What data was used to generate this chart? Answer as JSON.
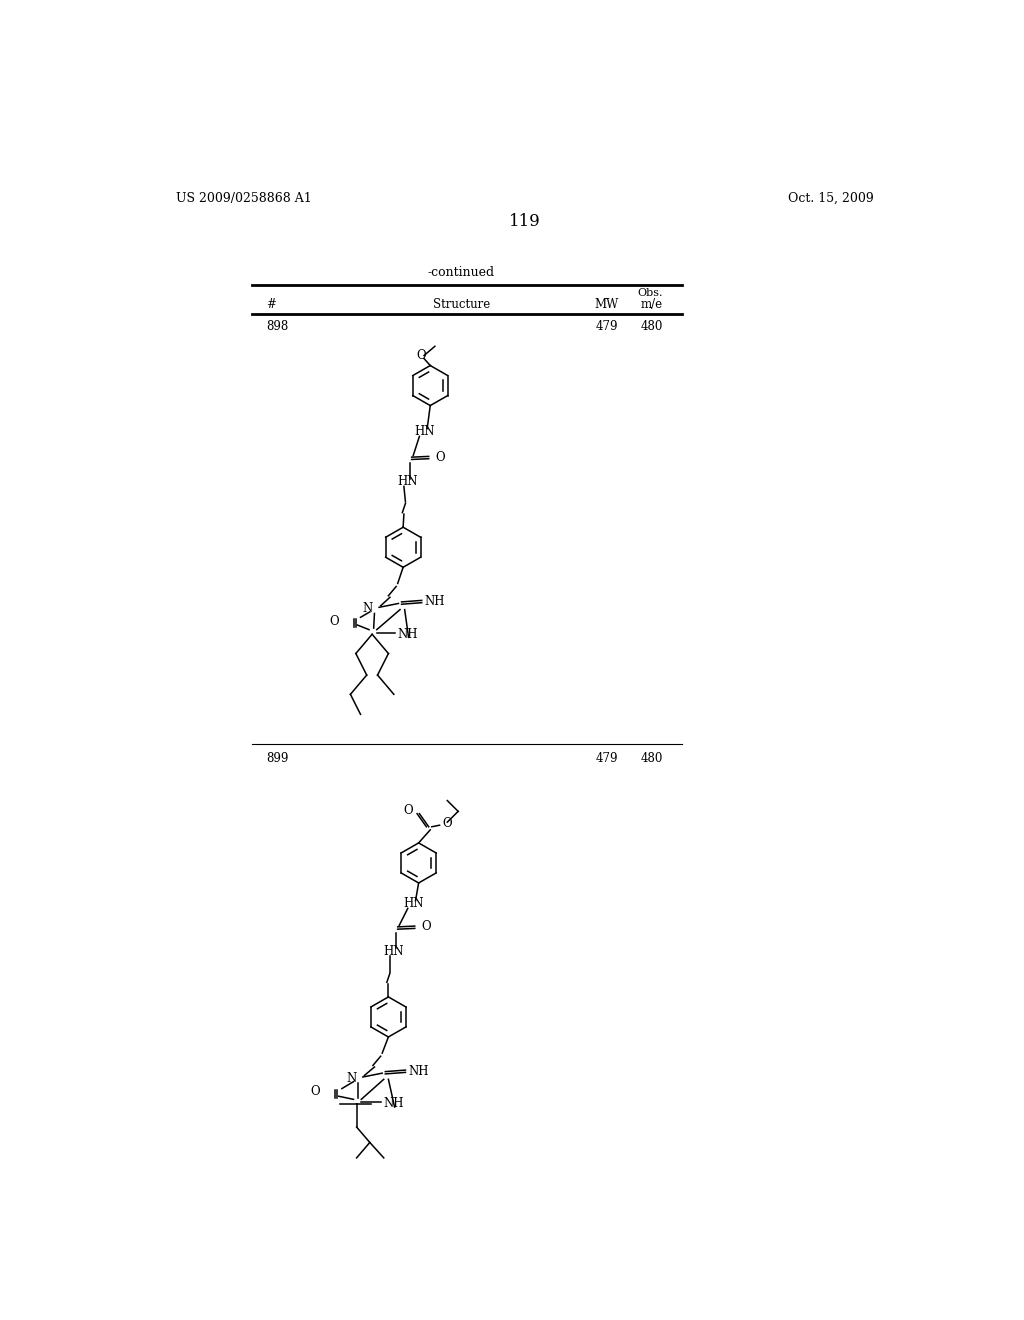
{
  "patent_number": "US 2009/0258868 A1",
  "date": "Oct. 15, 2009",
  "page_number": "119",
  "table_header": "-continued",
  "row1_num": "898",
  "row1_mw": "479",
  "row1_obs": "480",
  "row2_num": "899",
  "row2_mw": "479",
  "row2_obs": "480",
  "bg_color": "#ffffff",
  "text_color": "#000000"
}
